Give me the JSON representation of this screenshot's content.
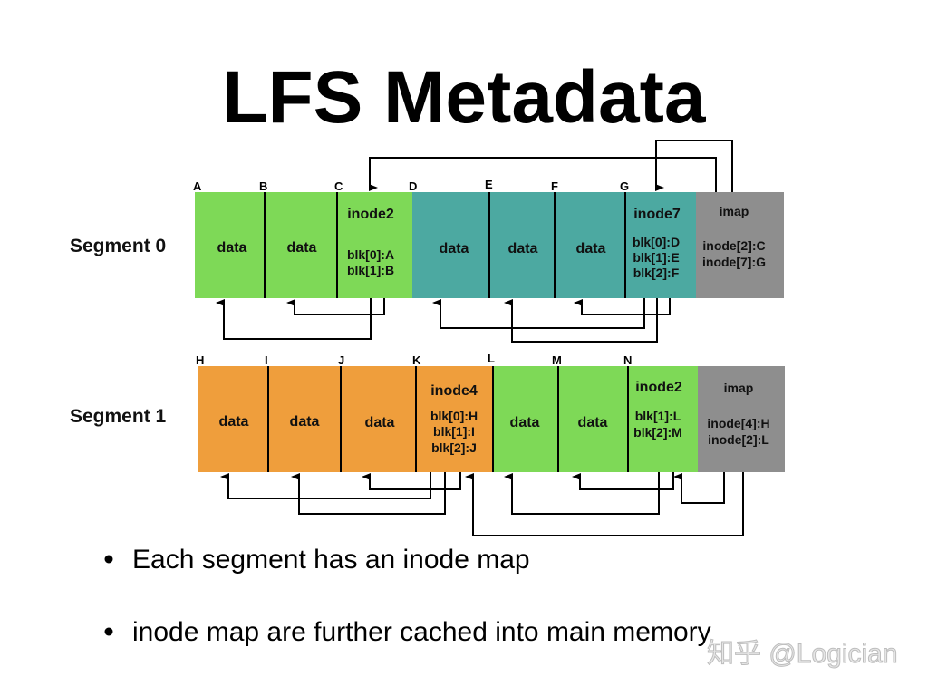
{
  "title": "LFS Metadata",
  "colors": {
    "green": "#7ED957",
    "teal": "#4CA9A1",
    "orange": "#EF9E3C",
    "gray": "#8E8E8E"
  },
  "segment0": {
    "label": "Segment 0",
    "addresses": [
      "A",
      "B",
      "C",
      "D",
      "E",
      "F",
      "G"
    ],
    "cells": {
      "data": "data",
      "inode2_title": "inode2",
      "inode2_l1": "blk[0]:A",
      "inode2_l2": "blk[1]:B",
      "inode7_title": "inode7",
      "inode7_l1": "blk[0]:D",
      "inode7_l2": "blk[1]:E",
      "inode7_l3": "blk[2]:F",
      "imap_title": "imap",
      "imap_l1": "inode[2]:C",
      "imap_l2": "inode[7]:G"
    }
  },
  "segment1": {
    "label": "Segment 1",
    "addresses": [
      "H",
      "I",
      "J",
      "K",
      "L",
      "M",
      "N"
    ],
    "cells": {
      "data": "data",
      "inode4_title": "inode4",
      "inode4_l1": "blk[0]:H",
      "inode4_l2": "blk[1]:I",
      "inode4_l3": "blk[2]:J",
      "inode2_title": "inode2",
      "inode2_l1": "blk[1]:L",
      "inode2_l2": "blk[2]:M",
      "imap_title": "imap",
      "imap_l1": "inode[4]:H",
      "imap_l2": "inode[2]:L"
    }
  },
  "bullets": [
    "Each segment has an inode map",
    "inode map are further cached into main memory"
  ],
  "watermark": "知乎 @Logician"
}
